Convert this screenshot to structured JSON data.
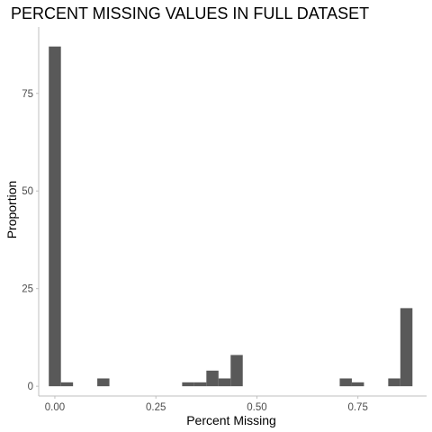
{
  "chart_data": {
    "type": "bar",
    "title": "PERCENT MISSING VALUES IN FULL DATASET",
    "xlabel": "Percent Missing",
    "ylabel": "Proportion",
    "xlim": [
      -0.04,
      0.92
    ],
    "ylim": [
      -2.5,
      92
    ],
    "xticks": [
      0.0,
      0.25,
      0.5,
      0.75
    ],
    "xtick_labels": [
      "0.00",
      "0.25",
      "0.50",
      "0.75"
    ],
    "yticks": [
      0,
      25,
      50,
      75
    ],
    "ytick_labels": [
      "0",
      "25",
      "50",
      "75"
    ],
    "bin_width": 0.03,
    "bins": [
      {
        "x": 0.0,
        "value": 87
      },
      {
        "x": 0.03,
        "value": 1
      },
      {
        "x": 0.12,
        "value": 2
      },
      {
        "x": 0.33,
        "value": 1
      },
      {
        "x": 0.36,
        "value": 1
      },
      {
        "x": 0.39,
        "value": 4
      },
      {
        "x": 0.42,
        "value": 2
      },
      {
        "x": 0.45,
        "value": 8
      },
      {
        "x": 0.72,
        "value": 2
      },
      {
        "x": 0.75,
        "value": 1
      },
      {
        "x": 0.84,
        "value": 2
      },
      {
        "x": 0.87,
        "value": 20
      }
    ],
    "bar_color": "#595959",
    "axis_color": "#bfbfbf",
    "grid": false
  }
}
